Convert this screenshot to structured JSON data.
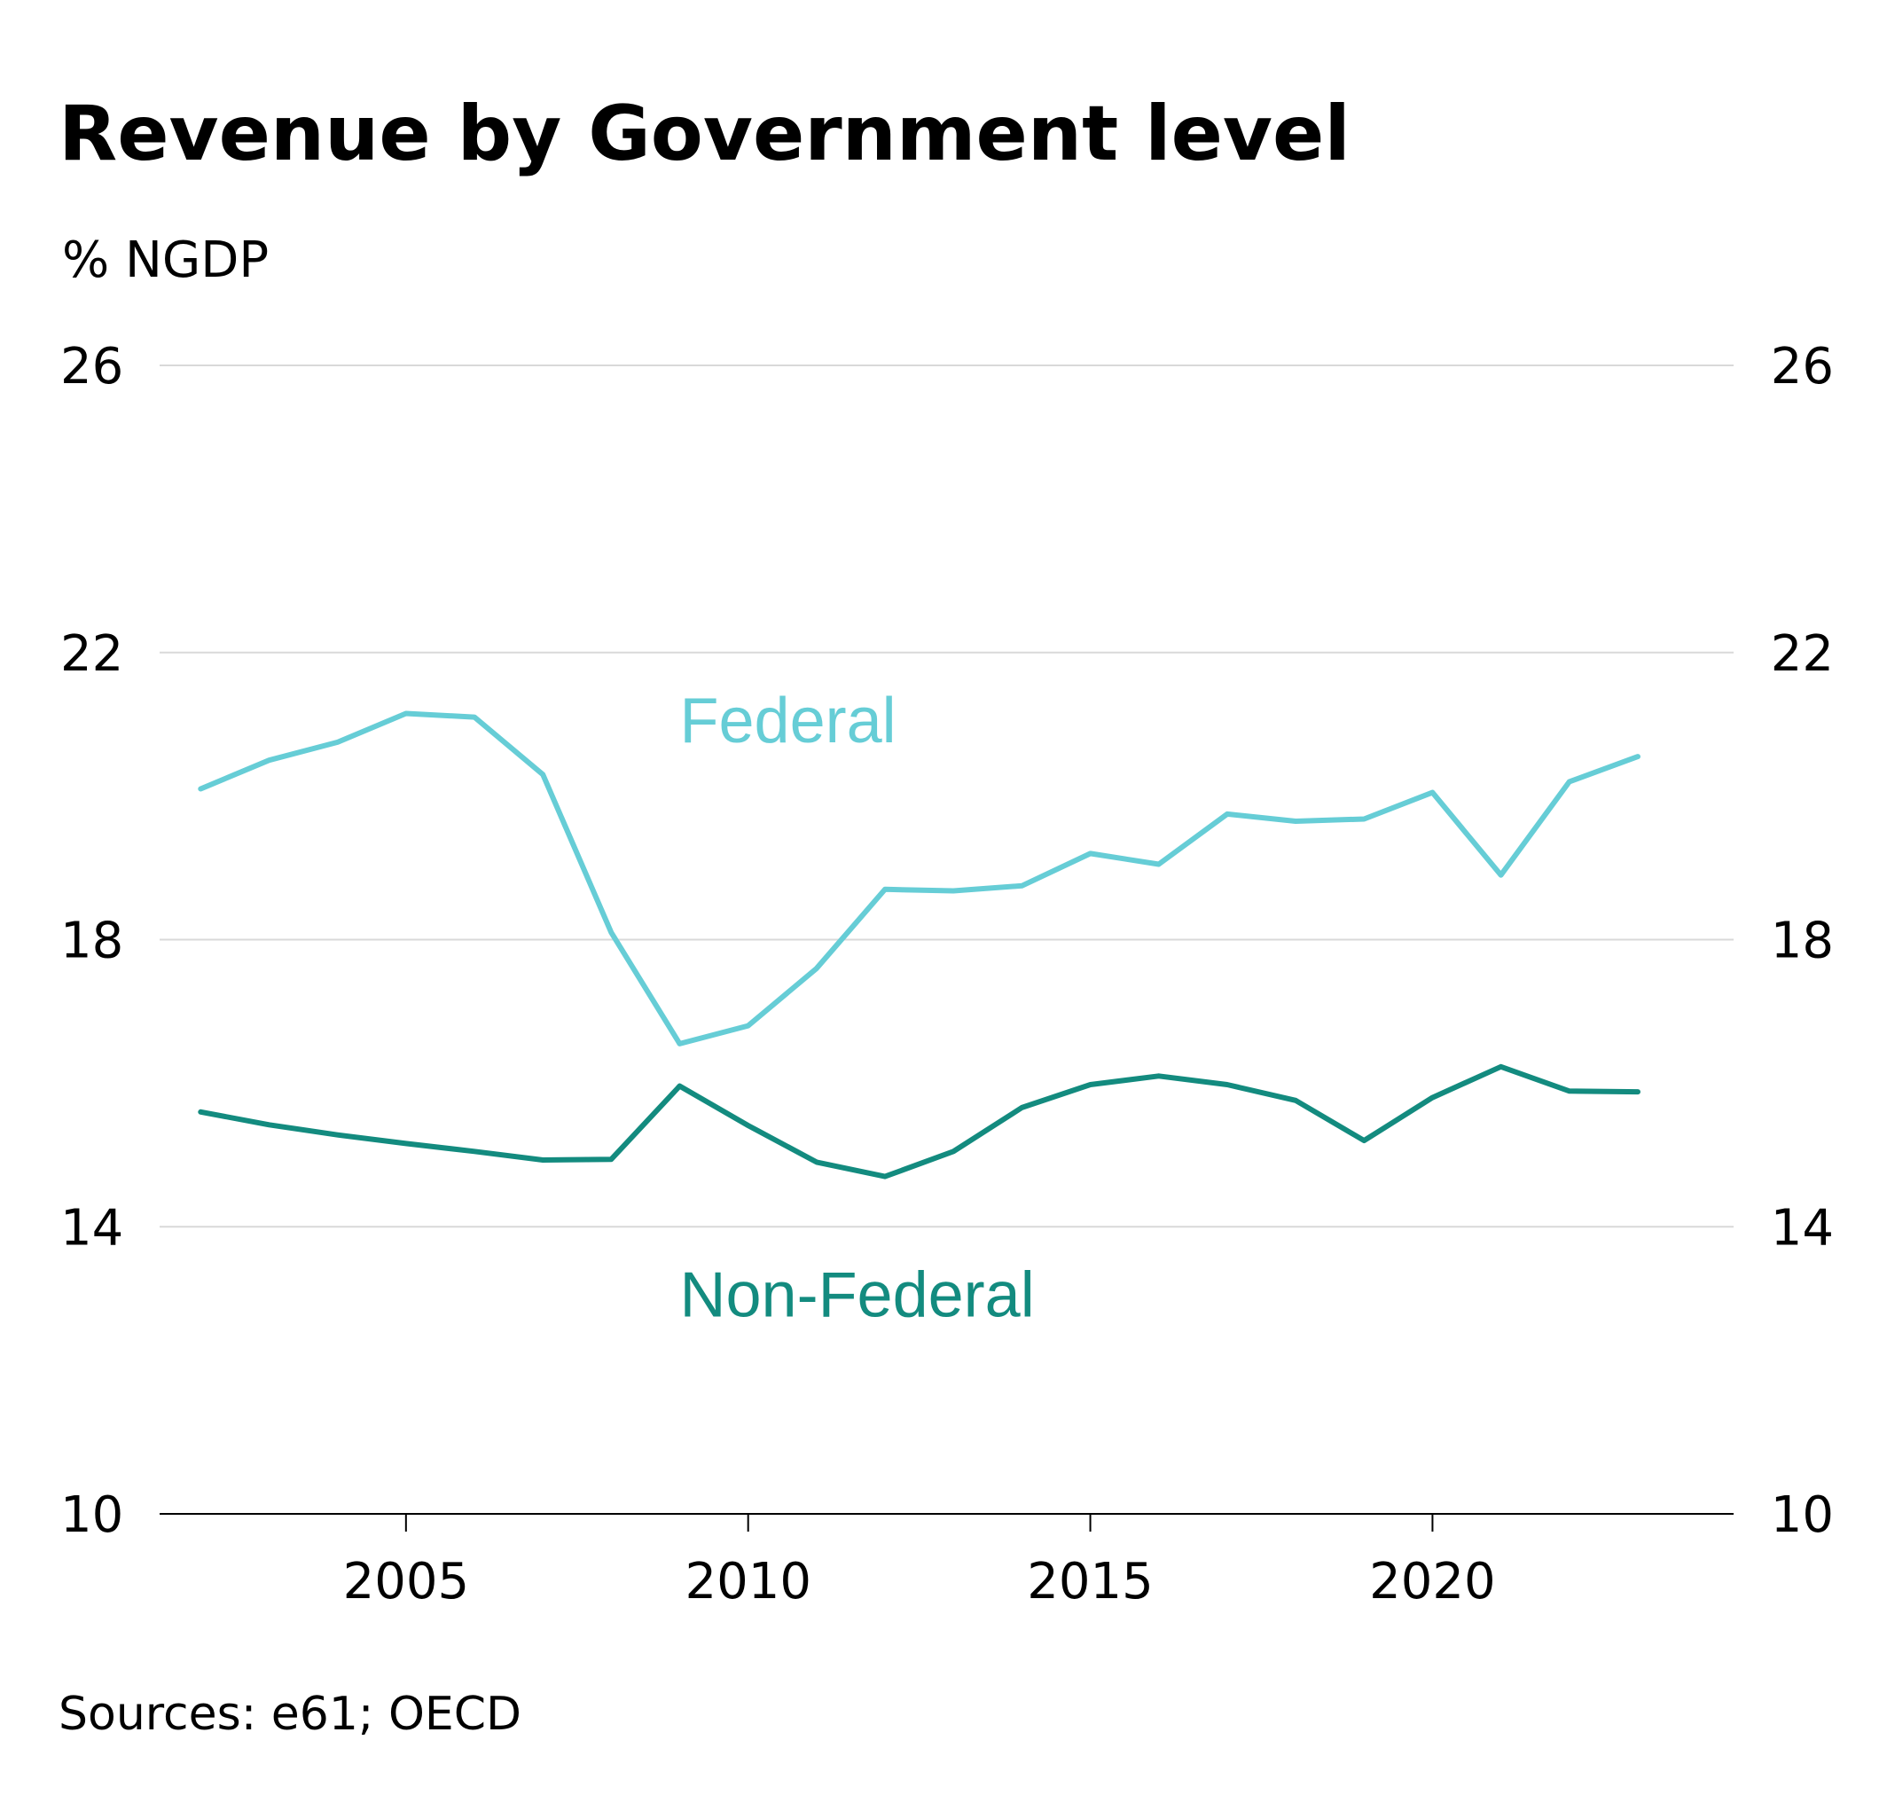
{
  "chart_data": {
    "type": "line",
    "title": "Revenue by Government level",
    "ylabel": "% NGDP",
    "xlabel": "",
    "source": "Sources: e61; OECD",
    "xlim": [
      2001.4,
      2024.4
    ],
    "ylim": [
      10,
      26
    ],
    "x_ticks": [
      2005,
      2010,
      2015,
      2020
    ],
    "y_ticks": [
      10,
      14,
      18,
      22,
      26
    ],
    "y_axis_sides": "both",
    "grid": "horizontal",
    "x": [
      2002,
      2003,
      2004,
      2005,
      2006,
      2007,
      2008,
      2009,
      2010,
      2011,
      2012,
      2013,
      2014,
      2015,
      2016,
      2017,
      2018,
      2019,
      2020,
      2021,
      2022,
      2023
    ],
    "series": [
      {
        "name": "Federal",
        "color": "#66cdd6",
        "values": [
          20.1,
          20.5,
          20.75,
          21.15,
          21.1,
          20.3,
          18.1,
          16.55,
          16.8,
          17.6,
          18.7,
          18.68,
          18.75,
          19.2,
          19.05,
          19.75,
          19.65,
          19.68,
          20.05,
          18.9,
          20.2,
          20.55
        ]
      },
      {
        "name": "Non-Federal",
        "color": "#138b7f",
        "values": [
          15.6,
          15.42,
          15.28,
          15.16,
          15.05,
          14.93,
          14.94,
          15.96,
          15.41,
          14.9,
          14.7,
          15.05,
          15.66,
          15.98,
          16.1,
          15.98,
          15.76,
          15.2,
          15.8,
          16.23,
          15.89,
          15.88
        ]
      }
    ],
    "colors": {
      "grid": "#d9d9d9",
      "axis": "#000000",
      "text": "#000000"
    }
  }
}
